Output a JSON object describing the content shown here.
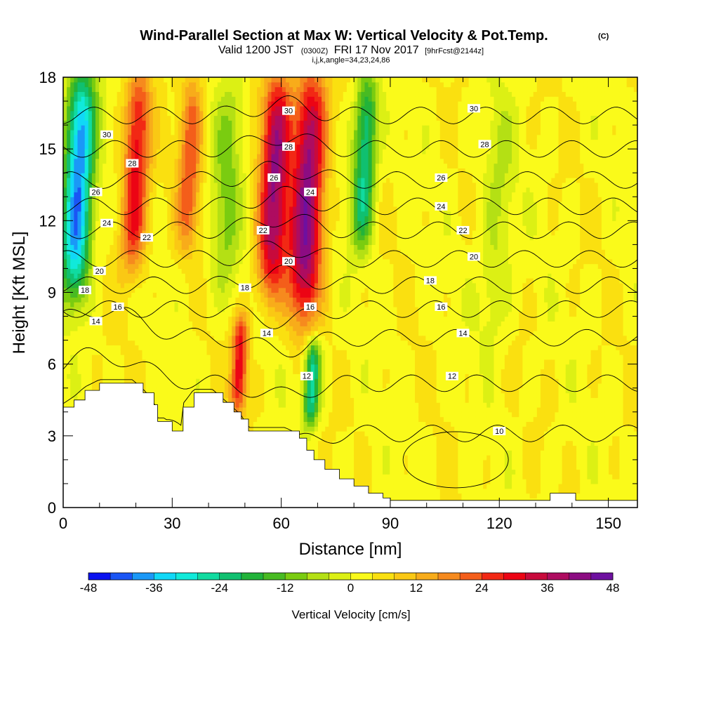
{
  "title": {
    "main": "Wind-Parallel Section at Max W: Vertical Velocity & Pot.Temp.",
    "copyright": "(C)",
    "valid_prefix": "Valid 1200 JST",
    "valid_utc": "(0300Z)",
    "valid_date": "FRI 17 Nov 2017",
    "forecast": "[9hrFcst@2144z]",
    "indices": "i,j,k,angle=34,23,24,86"
  },
  "chart_data": {
    "type": "heatmap",
    "xlabel": "Distance [nm]",
    "ylabel": "Height [Kft MSL]",
    "xlim": [
      0,
      158
    ],
    "ylim": [
      0,
      18
    ],
    "x_ticks": [
      "0",
      "30",
      "60",
      "90",
      "120",
      "150"
    ],
    "x_tick_values": [
      0,
      30,
      60,
      90,
      120,
      150
    ],
    "y_ticks": [
      "0",
      "3",
      "6",
      "9",
      "12",
      "15",
      "18"
    ],
    "y_tick_values": [
      0,
      3,
      6,
      9,
      12,
      15,
      18
    ],
    "field": "Vertical Velocity",
    "colorbar": {
      "label": "Vertical Velocity [cm/s]",
      "min": -48,
      "max": 48,
      "tick_labels": [
        "-48",
        "-36",
        "-24",
        "-12",
        "0",
        "12",
        "24",
        "36",
        "48"
      ],
      "tick_values": [
        -48,
        -36,
        -24,
        -12,
        0,
        12,
        24,
        36,
        48
      ],
      "colors": [
        "#0a12f0",
        "#1a55f5",
        "#1a98f7",
        "#10d8f7",
        "#10eada",
        "#10dba0",
        "#10c070",
        "#22b33a",
        "#48bb22",
        "#7acc10",
        "#b4e014",
        "#dcf014",
        "#fafa1a",
        "#fae010",
        "#fac814",
        "#f8ac1a",
        "#f68a1e",
        "#f45e1a",
        "#f22814",
        "#ec0414",
        "#c80a3c",
        "#ae0c60",
        "#8c0c82",
        "#6e10a0"
      ]
    },
    "vertical_velocity_structures": [
      {
        "kind": "downdraft",
        "x": 3,
        "y_bottom": 9,
        "y_top": 18,
        "w_min": -44
      },
      {
        "kind": "updraft",
        "x": 19,
        "y_bottom": 10,
        "y_top": 18,
        "w_max": 28
      },
      {
        "kind": "updraft",
        "x": 34,
        "y_bottom": 11,
        "y_top": 18,
        "w_max": 20
      },
      {
        "kind": "downdraft",
        "x": 44,
        "y_bottom": 9,
        "y_top": 18,
        "w_min": -12
      },
      {
        "kind": "updraft",
        "x": 57,
        "y_bottom": 9,
        "y_top": 18,
        "w_max": 36
      },
      {
        "kind": "updraft",
        "x": 66,
        "y_bottom": 8,
        "y_top": 18,
        "w_max": 40
      },
      {
        "kind": "updraft",
        "x": 48,
        "y_bottom": 4,
        "y_top": 8,
        "w_max": 28
      },
      {
        "kind": "downdraft",
        "x": 68,
        "y_bottom": 3.5,
        "y_top": 7,
        "w_min": -30
      },
      {
        "kind": "downdraft",
        "x": 82,
        "y_bottom": 11,
        "y_top": 18,
        "w_min": -28
      },
      {
        "kind": "downdraft",
        "x": 118,
        "y_bottom": 7,
        "y_top": 17,
        "w_min": -8
      }
    ],
    "potential_temperature_contours": {
      "name": "Pot.Temp.",
      "levels": [
        10,
        12,
        14,
        16,
        18,
        20,
        22,
        24,
        26,
        28,
        30
      ],
      "labels": [
        {
          "text": "30",
          "x": 12,
          "y": 15.6
        },
        {
          "text": "28",
          "x": 19,
          "y": 14.4
        },
        {
          "text": "26",
          "x": 9,
          "y": 13.2
        },
        {
          "text": "24",
          "x": 12,
          "y": 11.9
        },
        {
          "text": "22",
          "x": 23,
          "y": 11.3
        },
        {
          "text": "20",
          "x": 10,
          "y": 9.9
        },
        {
          "text": "18",
          "x": 6,
          "y": 9.1
        },
        {
          "text": "16",
          "x": 15,
          "y": 8.4
        },
        {
          "text": "14",
          "x": 9,
          "y": 7.8
        },
        {
          "text": "30",
          "x": 62,
          "y": 16.6
        },
        {
          "text": "28",
          "x": 62,
          "y": 15.1
        },
        {
          "text": "26",
          "x": 58,
          "y": 13.8
        },
        {
          "text": "24",
          "x": 68,
          "y": 13.2
        },
        {
          "text": "22",
          "x": 55,
          "y": 11.6
        },
        {
          "text": "20",
          "x": 62,
          "y": 10.3
        },
        {
          "text": "18",
          "x": 50,
          "y": 9.2
        },
        {
          "text": "16",
          "x": 68,
          "y": 8.4
        },
        {
          "text": "14",
          "x": 56,
          "y": 7.3
        },
        {
          "text": "12",
          "x": 67,
          "y": 5.5
        },
        {
          "text": "30",
          "x": 113,
          "y": 16.7
        },
        {
          "text": "28",
          "x": 116,
          "y": 15.2
        },
        {
          "text": "26",
          "x": 104,
          "y": 13.8
        },
        {
          "text": "24",
          "x": 104,
          "y": 12.6
        },
        {
          "text": "22",
          "x": 110,
          "y": 11.6
        },
        {
          "text": "20",
          "x": 113,
          "y": 10.5
        },
        {
          "text": "18",
          "x": 101,
          "y": 9.5
        },
        {
          "text": "16",
          "x": 104,
          "y": 8.4
        },
        {
          "text": "14",
          "x": 110,
          "y": 7.3
        },
        {
          "text": "12",
          "x": 107,
          "y": 5.5
        },
        {
          "text": "10",
          "x": 120,
          "y": 3.2
        }
      ]
    },
    "terrain": [
      [
        0,
        4.2
      ],
      [
        3,
        4.5
      ],
      [
        6,
        4.9
      ],
      [
        10,
        5.2
      ],
      [
        19,
        5.2
      ],
      [
        22,
        4.8
      ],
      [
        25,
        4.3
      ],
      [
        26,
        3.6
      ],
      [
        28,
        3.6
      ],
      [
        30,
        3.2
      ],
      [
        33,
        3.2
      ],
      [
        33,
        4.2
      ],
      [
        36,
        4.8
      ],
      [
        41,
        4.8
      ],
      [
        44,
        4.4
      ],
      [
        47,
        4.0
      ],
      [
        49,
        3.7
      ],
      [
        51,
        3.2
      ],
      [
        61,
        3.2
      ],
      [
        65,
        2.9
      ],
      [
        67,
        2.4
      ],
      [
        69,
        2.0
      ],
      [
        72,
        1.6
      ],
      [
        76,
        1.2
      ],
      [
        80,
        0.9
      ],
      [
        84,
        0.6
      ],
      [
        88,
        0.4
      ],
      [
        90,
        0.3
      ],
      [
        133,
        0.3
      ],
      [
        134,
        0.6
      ],
      [
        140,
        0.6
      ],
      [
        141,
        0.3
      ],
      [
        158,
        0.3
      ]
    ]
  }
}
